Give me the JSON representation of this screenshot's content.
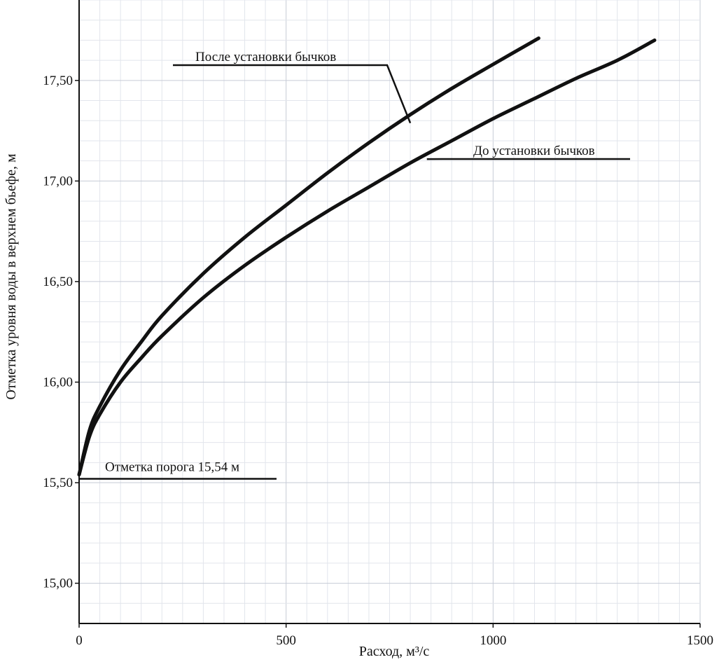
{
  "chart_data": {
    "type": "line",
    "title": "",
    "xlabel": "Расход, м³/с",
    "ylabel": "Отметка уровня воды в верхнем бьефе, м",
    "xlim": [
      0,
      1500
    ],
    "ylim": [
      14.8,
      17.9
    ],
    "grid": true,
    "x_ticks": [
      {
        "value": 0,
        "label": "0"
      },
      {
        "value": 500,
        "label": "500"
      },
      {
        "value": 1000,
        "label": "1000"
      },
      {
        "value": 1500,
        "label": "1500"
      }
    ],
    "y_ticks": [
      {
        "value": 15.0,
        "label": "15,00"
      },
      {
        "value": 15.5,
        "label": "15,50"
      },
      {
        "value": 16.0,
        "label": "16,00"
      },
      {
        "value": 16.5,
        "label": "16,50"
      },
      {
        "value": 17.0,
        "label": "17,00"
      },
      {
        "value": 17.5,
        "label": "17,50"
      }
    ],
    "series": [
      {
        "name": "После установки бычков",
        "color": "#111111",
        "points": [
          [
            0,
            15.54
          ],
          [
            25,
            15.76
          ],
          [
            50,
            15.88
          ],
          [
            100,
            16.06
          ],
          [
            150,
            16.2
          ],
          [
            200,
            16.33
          ],
          [
            300,
            16.54
          ],
          [
            400,
            16.72
          ],
          [
            500,
            16.88
          ],
          [
            600,
            17.04
          ],
          [
            700,
            17.19
          ],
          [
            800,
            17.33
          ],
          [
            900,
            17.46
          ],
          [
            1000,
            17.58
          ],
          [
            1110,
            17.71
          ]
        ]
      },
      {
        "name": "До установки бычков",
        "color": "#111111",
        "points": [
          [
            0,
            15.54
          ],
          [
            25,
            15.73
          ],
          [
            50,
            15.84
          ],
          [
            100,
            16.0
          ],
          [
            150,
            16.12
          ],
          [
            200,
            16.23
          ],
          [
            300,
            16.42
          ],
          [
            400,
            16.58
          ],
          [
            500,
            16.72
          ],
          [
            600,
            16.85
          ],
          [
            700,
            16.97
          ],
          [
            800,
            17.09
          ],
          [
            900,
            17.2
          ],
          [
            1000,
            17.31
          ],
          [
            1100,
            17.41
          ],
          [
            1200,
            17.51
          ],
          [
            1300,
            17.6
          ],
          [
            1390,
            17.7
          ]
        ]
      }
    ],
    "annotations": [
      {
        "text": "После установки бычков",
        "points_to_series": 0
      },
      {
        "text": "До установки бычков",
        "points_to_series": 1
      },
      {
        "text": "Отметка порога 15,54 м",
        "points_to_value": 15.54
      }
    ]
  }
}
